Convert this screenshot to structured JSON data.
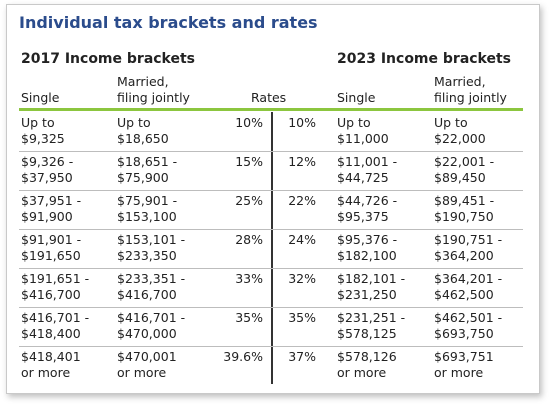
{
  "title": "Individual tax brackets and rates",
  "sections": [
    "2017 Income brackets",
    "2023 Income brackets"
  ],
  "header": [
    "Single",
    "Married,\nfiling jointly",
    "Rates",
    "Single",
    "Married,\nfiling jointly"
  ],
  "rows": [
    [
      "Up to\n$9,325",
      "Up to\n$18,650",
      "10%",
      "10%",
      "Up to\n$11,000",
      "Up to\n$22,000"
    ],
    [
      "$9,326 -\n$37,950",
      "$18,651 -\n$75,900",
      "15%",
      "12%",
      "$11,001 -\n$44,725",
      "$22,001 -\n$89,450"
    ],
    [
      "$37,951 -\n$91,900",
      "$75,901 -\n$153,100",
      "25%",
      "22%",
      "$44,726 -\n$95,375",
      "$89,451 -\n$190,750"
    ],
    [
      "$91,901 -\n$191,650",
      "$153,101 -\n$233,350",
      "28%",
      "24%",
      "$95,376 -\n$182,100",
      "$190,751 -\n$364,200"
    ],
    [
      "$191,651 -\n$416,700",
      "$233,351 -\n$416,700",
      "33%",
      "32%",
      "$182,101 -\n$231,250",
      "$364,201 -\n$462,500"
    ],
    [
      "$416,701 -\n$418,400",
      "$416,701 -\n$470,000",
      "35%",
      "35%",
      "$231,251 -\n$578,125",
      "$462,501 -\n$693,750"
    ],
    [
      "$418,401\nor more",
      "$470,001\nor more",
      "39.6%",
      "37%",
      "$578,126\nor more",
      "$693,751\nor more"
    ]
  ]
}
